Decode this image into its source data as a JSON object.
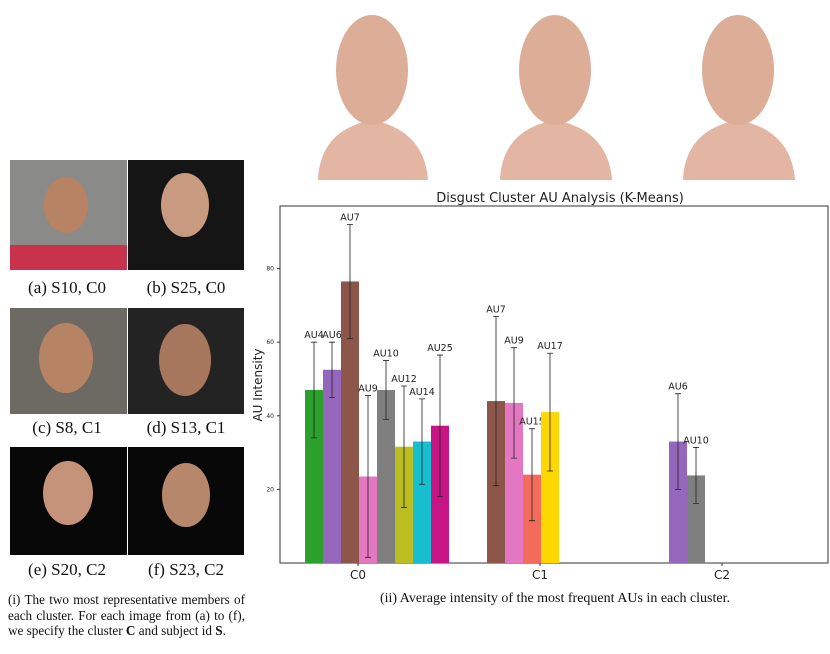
{
  "chart_data": {
    "type": "bar",
    "title": "Disgust Cluster AU Analysis (K-Means)",
    "y_label": "AU Intensity",
    "categories": [
      "C0",
      "C1",
      "C2"
    ],
    "series": [
      {
        "name": "AU4",
        "color": "#2ca02c",
        "values": [
          47,
          null,
          null
        ],
        "errors": [
          13,
          null,
          null
        ]
      },
      {
        "name": "AU6",
        "color": "#9467bd",
        "values": [
          52.5,
          null,
          33
        ],
        "errors": [
          7.5,
          null,
          13
        ]
      },
      {
        "name": "AU7",
        "color": "#8c564b",
        "values": [
          76.5,
          44,
          null
        ],
        "errors": [
          15.5,
          23,
          null
        ]
      },
      {
        "name": "AU9",
        "color": "#e377c2",
        "values": [
          23.5,
          43.5,
          null
        ],
        "errors": [
          22,
          15,
          null
        ]
      },
      {
        "name": "AU10",
        "color": "#7f7f7f",
        "values": [
          47,
          null,
          23.8
        ],
        "errors": [
          8,
          null,
          7.6
        ]
      },
      {
        "name": "AU12",
        "color": "#bcbd22",
        "values": [
          31.6,
          null,
          null
        ],
        "errors": [
          16.5,
          null,
          null
        ]
      },
      {
        "name": "AU14",
        "color": "#17becf",
        "values": [
          33,
          null,
          null
        ],
        "errors": [
          11.6,
          null,
          null
        ]
      },
      {
        "name": "AU15",
        "color": "#f26b5b",
        "values": [
          null,
          24,
          null
        ],
        "errors": [
          null,
          12.5,
          null
        ]
      },
      {
        "name": "AU17",
        "color": "#ffd700",
        "values": [
          null,
          41,
          null
        ],
        "errors": [
          null,
          16,
          null
        ]
      },
      {
        "name": "AU25",
        "color": "#c71585",
        "values": [
          37.3,
          null,
          null
        ],
        "errors": [
          19.2,
          null,
          null
        ]
      }
    ],
    "ylim": [
      0,
      97
    ],
    "yticks": [
      20,
      40,
      60,
      80
    ],
    "grid": false
  },
  "photo_labels": [
    "(a) S10, C0",
    "(b) S25, C0",
    "(c) S8, C1",
    "(d) S13, C1",
    "(e) S20, C2",
    "(f) S23, C2"
  ],
  "caption_left": [
    "(i) The two most representative members of each cluster. For each image from (a) to (f), we specify the cluster ",
    "C",
    " and subject id ",
    "S",
    "."
  ],
  "caption_right": "(ii) Average intensity of the most frequent AUs in each cluster."
}
